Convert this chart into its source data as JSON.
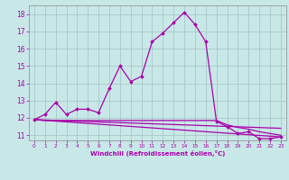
{
  "xlabel": "Windchill (Refroidissement éolien,°C)",
  "ylabel": "",
  "background_color": "#c8e8e8",
  "grid_color": "#a8c8c8",
  "line_color": "#aa00aa",
  "xlim": [
    -0.5,
    23.5
  ],
  "ylim": [
    10.7,
    18.5
  ],
  "yticks": [
    11,
    12,
    13,
    14,
    15,
    16,
    17,
    18
  ],
  "xticks": [
    0,
    1,
    2,
    3,
    4,
    5,
    6,
    7,
    8,
    9,
    10,
    11,
    12,
    13,
    14,
    15,
    16,
    17,
    18,
    19,
    20,
    21,
    22,
    23
  ],
  "line1_x": [
    0,
    1,
    2,
    3,
    4,
    5,
    6,
    7,
    8,
    9,
    10,
    11,
    12,
    13,
    14,
    15,
    16,
    17,
    18,
    19,
    20,
    21,
    22,
    23
  ],
  "line1_y": [
    11.9,
    12.2,
    12.9,
    12.2,
    12.5,
    12.5,
    12.3,
    13.7,
    15.0,
    14.1,
    14.4,
    16.4,
    16.9,
    17.5,
    18.1,
    17.4,
    16.4,
    11.8,
    11.5,
    11.1,
    11.2,
    10.8,
    10.8,
    10.9
  ],
  "line2_x": [
    0,
    1,
    2,
    3,
    4,
    5,
    6,
    7,
    8,
    9,
    10,
    11,
    12,
    13,
    14,
    15,
    16,
    17,
    18,
    19,
    20,
    21,
    22,
    23
  ],
  "line2_y": [
    11.9,
    11.85,
    11.85,
    11.85,
    11.85,
    11.85,
    11.85,
    11.85,
    11.85,
    11.85,
    11.85,
    11.85,
    11.85,
    11.85,
    11.85,
    11.85,
    11.85,
    11.85,
    11.6,
    11.45,
    11.35,
    11.2,
    11.1,
    11.0
  ],
  "line3_x": [
    0,
    23
  ],
  "line3_y": [
    11.9,
    10.9
  ],
  "line4_x": [
    0,
    23
  ],
  "line4_y": [
    11.9,
    11.4
  ]
}
